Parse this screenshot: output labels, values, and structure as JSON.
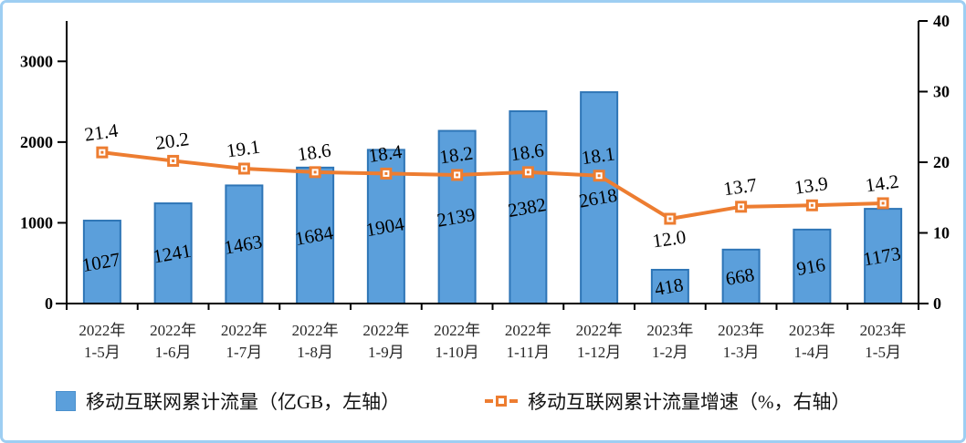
{
  "frame": {
    "background": "#ffffff",
    "border_color": "#9ecef2"
  },
  "chart_data": {
    "type": "bar+line combo",
    "title": "",
    "grid": false,
    "legend_position": "bottom",
    "categories": [
      [
        "2022年",
        "1-5月"
      ],
      [
        "2022年",
        "1-6月"
      ],
      [
        "2022年",
        "1-7月"
      ],
      [
        "2022年",
        "1-8月"
      ],
      [
        "2022年",
        "1-9月"
      ],
      [
        "2022年",
        "1-10月"
      ],
      [
        "2022年",
        "1-11月"
      ],
      [
        "2022年",
        "1-12月"
      ],
      [
        "2023年",
        "1-2月"
      ],
      [
        "2023年",
        "1-3月"
      ],
      [
        "2023年",
        "1-4月"
      ],
      [
        "2023年",
        "1-5月"
      ]
    ],
    "series": [
      {
        "name": "移动互联网累计流量（亿GB，左轴）",
        "type": "bar",
        "axis": "left",
        "values": [
          1027,
          1241,
          1463,
          1684,
          1904,
          2139,
          2382,
          2618,
          418,
          668,
          916,
          1173
        ],
        "labels": [
          "1027",
          "1241",
          "1463",
          "1684",
          "1904",
          "2139",
          "2382",
          "2618",
          "418",
          "668",
          "916",
          "1173"
        ],
        "fill": "#5b9fdb",
        "stroke": "#2e75b6"
      },
      {
        "name": "移动互联网累计流量增速（%，右轴）",
        "type": "line",
        "axis": "right",
        "values": [
          21.4,
          20.2,
          19.1,
          18.6,
          18.4,
          18.2,
          18.6,
          18.1,
          12.0,
          13.7,
          13.9,
          14.2
        ],
        "labels": [
          "21.4",
          "20.2",
          "19.1",
          "18.6",
          "18.4",
          "18.2",
          "18.6",
          "18.1",
          "12.0",
          "13.7",
          "13.9",
          "14.2"
        ],
        "label_side": [
          "above",
          "above",
          "above",
          "above",
          "above",
          "above",
          "above",
          "above",
          "below",
          "above",
          "above",
          "above"
        ],
        "color": "#ed7d31",
        "marker": "square-with-dot"
      }
    ],
    "left_axis": {
      "min": 0,
      "max": 3500,
      "tick_values": [
        0,
        1000,
        2000,
        3000
      ],
      "tick_labels": [
        "0",
        "1000",
        "2000",
        "3000"
      ]
    },
    "right_axis": {
      "min": 0,
      "max": 40,
      "tick_values": [
        0,
        10,
        20,
        30,
        40
      ],
      "tick_labels": [
        "0",
        "10",
        "20",
        "30",
        "40"
      ]
    }
  },
  "legend": {
    "bar_label": "移动互联网累计流量（亿GB，左轴）",
    "line_label": "移动互联网累计流量增速（%，右轴）"
  }
}
